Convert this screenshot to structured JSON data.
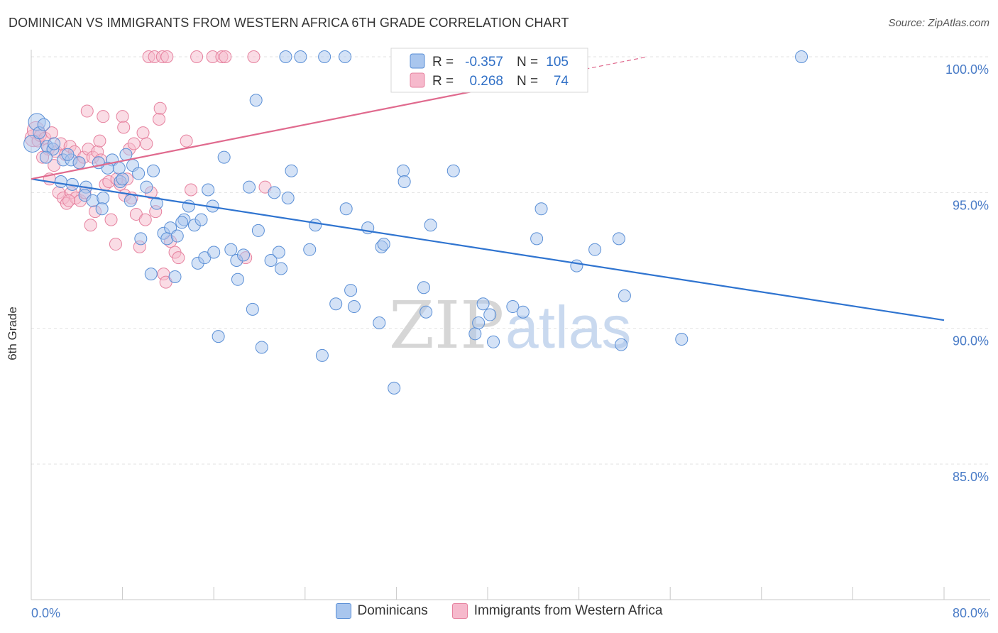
{
  "title": "DOMINICAN VS IMMIGRANTS FROM WESTERN AFRICA 6TH GRADE CORRELATION CHART",
  "source": "Source: ZipAtlas.com",
  "watermark": {
    "zip": "ZIP",
    "atlas": "atlas"
  },
  "colors": {
    "blue_fill": "#a9c6ee",
    "blue_stroke": "#5a8fd6",
    "blue_line": "#2f74d0",
    "pink_fill": "#f6b9cc",
    "pink_stroke": "#e6829f",
    "pink_line": "#e06a8e",
    "tick_label": "#4a7cc7",
    "grid": "#e3e3e3"
  },
  "legend_box": {
    "rows": [
      {
        "r_label": "R =",
        "r_value": "-0.357",
        "n_label": "N =",
        "n_value": "105",
        "series": "blue"
      },
      {
        "r_label": "R =",
        "r_value": "0.268",
        "n_label": "N =",
        "n_value": "74",
        "series": "pink"
      }
    ]
  },
  "chart_data": {
    "type": "scatter",
    "title": "DOMINICAN VS IMMIGRANTS FROM WESTERN AFRICA 6TH GRADE CORRELATION CHART",
    "xlabel": "",
    "ylabel": "6th Grade",
    "xlim": [
      0,
      80
    ],
    "ylim": [
      80.5,
      100.8
    ],
    "x_tick_labels": [
      "0.0%",
      "80.0%"
    ],
    "y_ticks": [
      85,
      90,
      95,
      100
    ],
    "y_tick_labels": [
      "85.0%",
      "90.0%",
      "95.0%",
      "100.0%"
    ],
    "grid": true,
    "legend_position": "bottom",
    "series": [
      {
        "name": "Dominicans",
        "color": "#a9c6ee",
        "trend": {
          "x": [
            0,
            80
          ],
          "y": [
            95.5,
            90.3
          ]
        },
        "points": [
          [
            0.1,
            96.8
          ],
          [
            0.5,
            97.6
          ],
          [
            0.7,
            97.2
          ],
          [
            1.1,
            97.5
          ],
          [
            1.4,
            96.7
          ],
          [
            1.9,
            96.6
          ],
          [
            2.0,
            96.8
          ],
          [
            2.8,
            96.2
          ],
          [
            3.5,
            96.2
          ],
          [
            4.2,
            96.1
          ],
          [
            3.6,
            95.3
          ],
          [
            4.8,
            95.2
          ],
          [
            4.7,
            94.9
          ],
          [
            5.4,
            94.7
          ],
          [
            6.3,
            94.8
          ],
          [
            6.2,
            94.4
          ],
          [
            7.1,
            96.2
          ],
          [
            7.7,
            95.9
          ],
          [
            8.3,
            96.4
          ],
          [
            6.7,
            95.9
          ],
          [
            7.8,
            95.4
          ],
          [
            8.7,
            94.7
          ],
          [
            8.9,
            96.0
          ],
          [
            9.4,
            95.7
          ],
          [
            10.1,
            95.2
          ],
          [
            10.7,
            95.8
          ],
          [
            11.0,
            94.6
          ],
          [
            9.6,
            93.3
          ],
          [
            10.5,
            92.0
          ],
          [
            11.6,
            93.5
          ],
          [
            12.2,
            93.7
          ],
          [
            11.9,
            93.3
          ],
          [
            12.6,
            91.9
          ],
          [
            12.8,
            93.4
          ],
          [
            13.4,
            94.0
          ],
          [
            13.8,
            94.5
          ],
          [
            14.3,
            93.8
          ],
          [
            14.9,
            94.0
          ],
          [
            14.6,
            92.4
          ],
          [
            15.2,
            92.6
          ],
          [
            15.5,
            95.1
          ],
          [
            15.9,
            94.5
          ],
          [
            16.4,
            89.7
          ],
          [
            16.9,
            96.3
          ],
          [
            17.5,
            92.9
          ],
          [
            18.0,
            92.5
          ],
          [
            18.1,
            91.8
          ],
          [
            18.6,
            92.7
          ],
          [
            19.1,
            95.2
          ],
          [
            19.4,
            90.7
          ],
          [
            19.7,
            98.4
          ],
          [
            19.9,
            93.6
          ],
          [
            20.2,
            89.3
          ],
          [
            21.0,
            92.5
          ],
          [
            21.3,
            95.0
          ],
          [
            21.7,
            92.8
          ],
          [
            21.9,
            92.2
          ],
          [
            22.3,
            100.0
          ],
          [
            22.5,
            94.8
          ],
          [
            22.8,
            95.8
          ],
          [
            23.6,
            100.0
          ],
          [
            24.4,
            92.9
          ],
          [
            24.9,
            93.8
          ],
          [
            25.5,
            89.0
          ],
          [
            25.7,
            100.0
          ],
          [
            26.7,
            90.9
          ],
          [
            27.5,
            100.0
          ],
          [
            27.6,
            94.4
          ],
          [
            28.0,
            91.4
          ],
          [
            28.3,
            90.8
          ],
          [
            29.5,
            93.7
          ],
          [
            30.7,
            93.0
          ],
          [
            30.9,
            93.1
          ],
          [
            30.5,
            90.2
          ],
          [
            32.1,
            100.0
          ],
          [
            32.6,
            95.8
          ],
          [
            32.7,
            95.4
          ],
          [
            31.8,
            87.8
          ],
          [
            34.4,
            91.5
          ],
          [
            34.6,
            90.6
          ],
          [
            35.0,
            93.8
          ],
          [
            37.0,
            95.8
          ],
          [
            38.9,
            89.8
          ],
          [
            39.2,
            90.2
          ],
          [
            39.6,
            90.9
          ],
          [
            40.2,
            90.5
          ],
          [
            40.5,
            89.5
          ],
          [
            42.2,
            90.8
          ],
          [
            43.1,
            90.6
          ],
          [
            44.3,
            93.3
          ],
          [
            44.7,
            94.4
          ],
          [
            47.8,
            92.3
          ],
          [
            49.4,
            92.9
          ],
          [
            51.5,
            93.3
          ],
          [
            51.7,
            89.4
          ],
          [
            52.0,
            91.2
          ],
          [
            57.0,
            89.6
          ],
          [
            67.5,
            100.0
          ],
          [
            1.3,
            96.3
          ],
          [
            2.6,
            95.4
          ],
          [
            5.9,
            96.1
          ],
          [
            8.0,
            95.5
          ],
          [
            3.2,
            96.4
          ],
          [
            13.2,
            93.9
          ],
          [
            16.0,
            92.8
          ]
        ]
      },
      {
        "name": "Immigrants from Western Africa",
        "color": "#f6b9cc",
        "trend": {
          "x": [
            0,
            54
          ],
          "y": [
            95.5,
            100.0
          ]
        },
        "points": [
          [
            0.2,
            97.0
          ],
          [
            0.4,
            97.3
          ],
          [
            0.6,
            96.9
          ],
          [
            0.8,
            97.1
          ],
          [
            1.2,
            97.0
          ],
          [
            1.5,
            96.6
          ],
          [
            1.8,
            97.2
          ],
          [
            2.2,
            96.5
          ],
          [
            2.6,
            96.8
          ],
          [
            3.0,
            96.4
          ],
          [
            3.4,
            96.7
          ],
          [
            3.8,
            96.5
          ],
          [
            4.2,
            96.1
          ],
          [
            4.6,
            96.3
          ],
          [
            5.0,
            96.6
          ],
          [
            5.4,
            96.3
          ],
          [
            5.8,
            96.5
          ],
          [
            6.1,
            96.2
          ],
          [
            1.0,
            96.3
          ],
          [
            1.6,
            95.5
          ],
          [
            2.0,
            96.0
          ],
          [
            2.4,
            95.0
          ],
          [
            2.8,
            94.8
          ],
          [
            3.1,
            94.6
          ],
          [
            3.5,
            95.0
          ],
          [
            3.9,
            94.8
          ],
          [
            4.3,
            94.7
          ],
          [
            4.7,
            95.0
          ],
          [
            5.2,
            93.8
          ],
          [
            5.6,
            94.3
          ],
          [
            6.5,
            95.3
          ],
          [
            6.8,
            95.4
          ],
          [
            7.0,
            94.0
          ],
          [
            7.4,
            93.1
          ],
          [
            7.8,
            95.3
          ],
          [
            8.2,
            94.9
          ],
          [
            8.6,
            96.6
          ],
          [
            8.4,
            95.5
          ],
          [
            8.8,
            94.8
          ],
          [
            9.2,
            94.2
          ],
          [
            9.5,
            93.0
          ],
          [
            9.8,
            97.2
          ],
          [
            10.1,
            96.8
          ],
          [
            10.5,
            95.0
          ],
          [
            10.9,
            94.3
          ],
          [
            11.3,
            98.1
          ],
          [
            11.2,
            97.7
          ],
          [
            11.6,
            92.0
          ],
          [
            11.8,
            91.7
          ],
          [
            12.2,
            93.2
          ],
          [
            12.6,
            92.8
          ],
          [
            12.9,
            92.6
          ],
          [
            13.6,
            96.9
          ],
          [
            14.0,
            95.1
          ],
          [
            4.9,
            98.0
          ],
          [
            6.3,
            97.8
          ],
          [
            8.0,
            97.8
          ],
          [
            8.1,
            97.4
          ],
          [
            10.3,
            100.0
          ],
          [
            10.8,
            100.0
          ],
          [
            11.5,
            100.0
          ],
          [
            11.9,
            100.0
          ],
          [
            14.5,
            100.0
          ],
          [
            15.9,
            100.0
          ],
          [
            16.7,
            100.0
          ],
          [
            17.0,
            100.0
          ],
          [
            19.5,
            100.0
          ],
          [
            3.3,
            94.7
          ],
          [
            6.0,
            96.9
          ],
          [
            7.5,
            95.5
          ],
          [
            9.0,
            96.8
          ],
          [
            10.0,
            94.0
          ],
          [
            18.8,
            92.6
          ],
          [
            20.5,
            95.2
          ]
        ]
      }
    ]
  }
}
